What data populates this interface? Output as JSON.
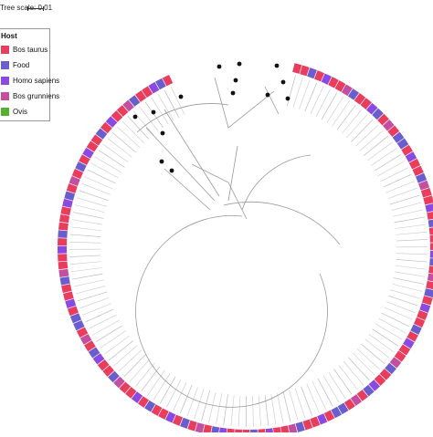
{
  "scale": {
    "label": "Tree scale: 0.01"
  },
  "legend": {
    "title": "Host",
    "items": [
      {
        "label": "Bos taurus",
        "color": "#e83d5d"
      },
      {
        "label": "Food",
        "color": "#6a5ecf"
      },
      {
        "label": "Homo sapiens",
        "color": "#8a49e0"
      },
      {
        "label": "Bos grunniens",
        "color": "#c44fa0"
      },
      {
        "label": "Ovis",
        "color": "#55b030"
      }
    ]
  },
  "ring": {
    "gap_start_angle": 244,
    "gap_end_angle": 284,
    "pattern": [
      0,
      0,
      1,
      0,
      2,
      0,
      0,
      3,
      1,
      0,
      0,
      2,
      1,
      0,
      3,
      0,
      1,
      1,
      0,
      2,
      0,
      0,
      1,
      3,
      0,
      0,
      2,
      0,
      1,
      0,
      0,
      0,
      2,
      1,
      0,
      3,
      0,
      1,
      0,
      2
    ]
  }
}
